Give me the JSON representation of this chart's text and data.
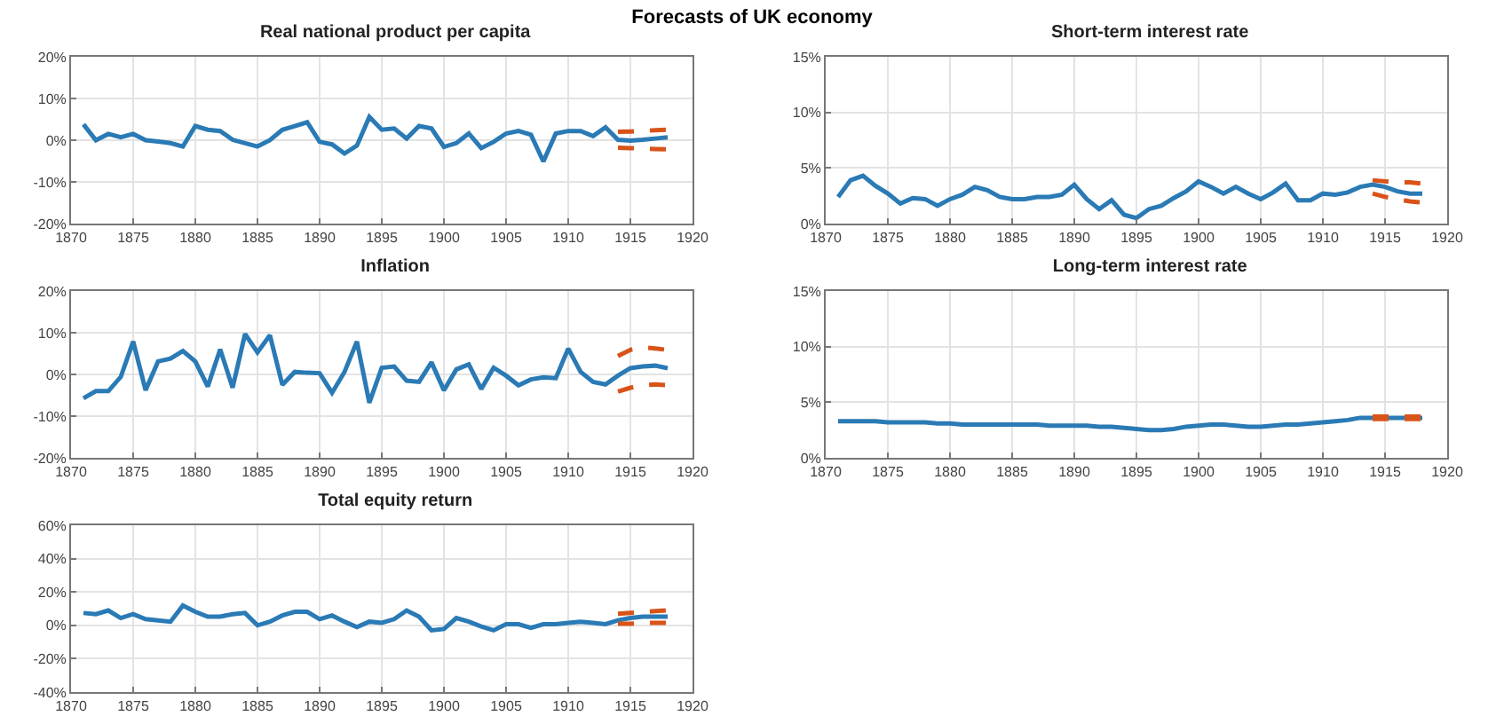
{
  "chart_data": [
    {
      "type": "line",
      "title": "Real national product per capita",
      "annotations": [
        "Forecasts of UK economy"
      ],
      "x": [
        1871,
        1872,
        1873,
        1874,
        1875,
        1876,
        1877,
        1878,
        1879,
        1880,
        1881,
        1882,
        1883,
        1884,
        1885,
        1886,
        1887,
        1888,
        1889,
        1890,
        1891,
        1892,
        1893,
        1894,
        1895,
        1896,
        1897,
        1898,
        1899,
        1900,
        1901,
        1902,
        1903,
        1904,
        1905,
        1906,
        1907,
        1908,
        1909,
        1910,
        1911,
        1912,
        1913,
        1914,
        1915,
        1916,
        1917,
        1918
      ],
      "series": [
        {
          "color": "#2a7ab5",
          "values": [
            3.8,
            0,
            1.5,
            0.7,
            1.5,
            0,
            -0.3,
            -0.7,
            -1.5,
            3.4,
            2.5,
            2.2,
            0.1,
            -0.7,
            -1.5,
            0,
            2.5,
            3.4,
            4.3,
            -0.4,
            -1,
            -3.2,
            -1.3,
            5.6,
            2.5,
            2.8,
            0.4,
            3.4,
            2.8,
            -1.6,
            -0.7,
            1.6,
            -1.9,
            -0.4,
            1.6,
            2.2,
            1.3,
            -5.1,
            1.6,
            2.2,
            2.2,
            1,
            3.1,
            0.1,
            -0.1,
            0.1,
            0.4,
            0.7
          ]
        },
        {
          "color": "#d95319",
          "line_style": "dashed",
          "x": [
            1914,
            1915,
            1916,
            1917,
            1918
          ],
          "values": [
            2,
            2.1,
            2.2,
            2.4,
            2.5
          ]
        },
        {
          "color": "#d95319",
          "line_style": "dashed",
          "x": [
            1914,
            1915,
            1916,
            1917,
            1918
          ],
          "values": [
            -1.8,
            -1.9,
            -2,
            -2.1,
            -2.2
          ]
        }
      ],
      "xlim": [
        1870,
        1920
      ],
      "xticks": [
        1870,
        1875,
        1880,
        1885,
        1890,
        1895,
        1900,
        1905,
        1910,
        1915,
        1920
      ],
      "ylim": [
        -20,
        20
      ],
      "yticks": [
        {
          "value": -20,
          "label": "-20%"
        },
        {
          "value": -10,
          "label": "-10%"
        },
        {
          "value": 0,
          "label": "0%"
        },
        {
          "value": 10,
          "label": "10%"
        },
        {
          "value": 20,
          "label": "20%"
        }
      ],
      "grid": true,
      "marker": "none"
    },
    {
      "type": "line",
      "title": "Short-term interest rate",
      "x": [
        1871,
        1872,
        1873,
        1874,
        1875,
        1876,
        1877,
        1878,
        1879,
        1880,
        1881,
        1882,
        1883,
        1884,
        1885,
        1886,
        1887,
        1888,
        1889,
        1890,
        1891,
        1892,
        1893,
        1894,
        1895,
        1896,
        1897,
        1898,
        1899,
        1900,
        1901,
        1902,
        1903,
        1904,
        1905,
        1906,
        1907,
        1908,
        1909,
        1910,
        1911,
        1912,
        1913,
        1914,
        1915,
        1916,
        1917,
        1918
      ],
      "series": [
        {
          "color": "#2a7ab5",
          "values": [
            2.4,
            3.9,
            4.3,
            3.4,
            2.7,
            1.8,
            2.3,
            2.2,
            1.6,
            2.2,
            2.6,
            3.3,
            3,
            2.4,
            2.2,
            2.2,
            2.4,
            2.4,
            2.6,
            3.5,
            2.2,
            1.3,
            2.1,
            0.8,
            0.5,
            1.3,
            1.6,
            2.3,
            2.9,
            3.8,
            3.3,
            2.7,
            3.3,
            2.7,
            2.2,
            2.8,
            3.6,
            2.1,
            2.1,
            2.7,
            2.6,
            2.8,
            3.3,
            3.5,
            3.3,
            2.9,
            2.7,
            2.7
          ]
        },
        {
          "color": "#d95319",
          "line_style": "dashed",
          "x": [
            1914,
            1915,
            1916,
            1917,
            1918
          ],
          "values": [
            3.9,
            3.8,
            3.7,
            3.7,
            3.6
          ]
        },
        {
          "color": "#d95319",
          "line_style": "dashed",
          "x": [
            1914,
            1915,
            1916,
            1917,
            1918
          ],
          "values": [
            2.7,
            2.4,
            2.2,
            2,
            1.9
          ]
        }
      ],
      "xlim": [
        1870,
        1920
      ],
      "xticks": [
        1870,
        1875,
        1880,
        1885,
        1890,
        1895,
        1900,
        1905,
        1910,
        1915,
        1920
      ],
      "ylim": [
        0,
        15
      ],
      "yticks": [
        {
          "value": 0,
          "label": "0%"
        },
        {
          "value": 5,
          "label": "5%"
        },
        {
          "value": 10,
          "label": "10%"
        },
        {
          "value": 15,
          "label": "15%"
        }
      ],
      "grid": true,
      "marker": "none"
    },
    {
      "type": "line",
      "title": "Inflation",
      "x": [
        1871,
        1872,
        1873,
        1874,
        1875,
        1876,
        1877,
        1878,
        1879,
        1880,
        1881,
        1882,
        1883,
        1884,
        1885,
        1886,
        1887,
        1888,
        1889,
        1890,
        1891,
        1892,
        1893,
        1894,
        1895,
        1896,
        1897,
        1898,
        1899,
        1900,
        1901,
        1902,
        1903,
        1904,
        1905,
        1906,
        1907,
        1908,
        1909,
        1910,
        1911,
        1912,
        1913,
        1914,
        1915,
        1916,
        1917,
        1918
      ],
      "series": [
        {
          "color": "#2a7ab5",
          "values": [
            -5.7,
            -4,
            -4,
            -0.6,
            7.9,
            -3.8,
            3.1,
            3.8,
            5.6,
            3.1,
            -2.9,
            6,
            -3.2,
            9.7,
            5.3,
            9.4,
            -2.5,
            0.6,
            0.4,
            0.3,
            -4.4,
            0.6,
            7.9,
            -6.8,
            1.6,
            1.9,
            -1.5,
            -1.8,
            2.9,
            -3.8,
            1.2,
            2.4,
            -3.5,
            1.6,
            -0.3,
            -2.6,
            -1.2,
            -0.7,
            -0.9,
            6.2,
            0.6,
            -1.8,
            -2.4,
            -0.3,
            1.5,
            1.9,
            2.1,
            1.5
          ]
        },
        {
          "color": "#d95319",
          "line_style": "dashed",
          "x": [
            1914,
            1915,
            1916,
            1917,
            1918
          ],
          "values": [
            4.4,
            5.9,
            6.5,
            6.2,
            5.9
          ]
        },
        {
          "color": "#d95319",
          "line_style": "dashed",
          "x": [
            1914,
            1915,
            1916,
            1917,
            1918
          ],
          "values": [
            -4.1,
            -3.2,
            -2.6,
            -2.4,
            -2.6
          ]
        }
      ],
      "xlim": [
        1870,
        1920
      ],
      "xticks": [
        1870,
        1875,
        1880,
        1885,
        1890,
        1895,
        1900,
        1905,
        1910,
        1915,
        1920
      ],
      "ylim": [
        -20,
        20
      ],
      "yticks": [
        {
          "value": -20,
          "label": "-20%"
        },
        {
          "value": -10,
          "label": "-10%"
        },
        {
          "value": 0,
          "label": "0%"
        },
        {
          "value": 10,
          "label": "10%"
        },
        {
          "value": 20,
          "label": "20%"
        }
      ],
      "grid": true,
      "marker": "none"
    },
    {
      "type": "line",
      "title": "Long-term interest rate",
      "x": [
        1871,
        1872,
        1873,
        1874,
        1875,
        1876,
        1877,
        1878,
        1879,
        1880,
        1881,
        1882,
        1883,
        1884,
        1885,
        1886,
        1887,
        1888,
        1889,
        1890,
        1891,
        1892,
        1893,
        1894,
        1895,
        1896,
        1897,
        1898,
        1899,
        1900,
        1901,
        1902,
        1903,
        1904,
        1905,
        1906,
        1907,
        1908,
        1909,
        1910,
        1911,
        1912,
        1913,
        1914,
        1915,
        1916,
        1917,
        1918
      ],
      "series": [
        {
          "color": "#2a7ab5",
          "values": [
            3.3,
            3.3,
            3.3,
            3.3,
            3.2,
            3.2,
            3.2,
            3.2,
            3.1,
            3.1,
            3,
            3,
            3,
            3,
            3,
            3,
            3,
            2.9,
            2.9,
            2.9,
            2.9,
            2.8,
            2.8,
            2.7,
            2.6,
            2.5,
            2.5,
            2.6,
            2.8,
            2.9,
            3,
            3,
            2.9,
            2.8,
            2.8,
            2.9,
            3,
            3,
            3.1,
            3.2,
            3.3,
            3.4,
            3.6,
            3.6,
            3.6,
            3.6,
            3.6,
            3.6
          ]
        },
        {
          "color": "#d95319",
          "line_style": "dashed",
          "x": [
            1914,
            1915,
            1916,
            1917,
            1918
          ],
          "values": [
            3.7,
            3.7,
            3.7,
            3.7,
            3.7
          ]
        },
        {
          "color": "#d95319",
          "line_style": "dashed",
          "x": [
            1914,
            1915,
            1916,
            1917,
            1918
          ],
          "values": [
            3.5,
            3.5,
            3.5,
            3.5,
            3.5
          ]
        }
      ],
      "xlim": [
        1870,
        1920
      ],
      "xticks": [
        1870,
        1875,
        1880,
        1885,
        1890,
        1895,
        1900,
        1905,
        1910,
        1915,
        1920
      ],
      "ylim": [
        0,
        15
      ],
      "yticks": [
        {
          "value": 0,
          "label": "0%"
        },
        {
          "value": 5,
          "label": "5%"
        },
        {
          "value": 10,
          "label": "10%"
        },
        {
          "value": 15,
          "label": "15%"
        }
      ],
      "grid": true,
      "marker": "none"
    },
    {
      "type": "line",
      "title": "Total equity return",
      "x": [
        1871,
        1872,
        1873,
        1874,
        1875,
        1876,
        1877,
        1878,
        1879,
        1880,
        1881,
        1882,
        1883,
        1884,
        1885,
        1886,
        1887,
        1888,
        1889,
        1890,
        1891,
        1892,
        1893,
        1894,
        1895,
        1896,
        1897,
        1898,
        1899,
        1900,
        1901,
        1902,
        1903,
        1904,
        1905,
        1906,
        1907,
        1908,
        1909,
        1910,
        1911,
        1912,
        1913,
        1914,
        1915,
        1916,
        1917,
        1918
      ],
      "series": [
        {
          "color": "#2a7ab5",
          "values": [
            7.4,
            6.7,
            8.9,
            4.4,
            6.7,
            3.7,
            3,
            2.2,
            11.9,
            8.1,
            5.2,
            5.2,
            6.7,
            7.4,
            0,
            2.2,
            5.9,
            8.1,
            8.1,
            3.7,
            5.9,
            2.2,
            -1.1,
            2.2,
            1.5,
            3.7,
            8.9,
            5.2,
            -3,
            -2.2,
            4.4,
            2.2,
            -0.7,
            -3,
            0.7,
            0.7,
            -1.5,
            0.7,
            0.7,
            1.5,
            2.2,
            1.5,
            0.7,
            3,
            4.4,
            5.2,
            5.2,
            5.2
          ]
        },
        {
          "color": "#d95319",
          "line_style": "dashed",
          "x": [
            1914,
            1915,
            1916,
            1917,
            1918
          ],
          "values": [
            7,
            7.5,
            8,
            8.5,
            9
          ]
        },
        {
          "color": "#d95319",
          "line_style": "dashed",
          "x": [
            1914,
            1915,
            1916,
            1917,
            1918
          ],
          "values": [
            1,
            1,
            1.5,
            1.5,
            1.5
          ]
        }
      ],
      "xlim": [
        1870,
        1920
      ],
      "xticks": [
        1870,
        1875,
        1880,
        1885,
        1890,
        1895,
        1900,
        1905,
        1910,
        1915,
        1920
      ],
      "ylim": [
        -40,
        60
      ],
      "yticks": [
        {
          "value": -40,
          "label": "-40%"
        },
        {
          "value": -20,
          "label": "-20%"
        },
        {
          "value": 0,
          "label": "0%"
        },
        {
          "value": 20,
          "label": "20%"
        },
        {
          "value": 40,
          "label": "40%"
        },
        {
          "value": 60,
          "label": "60%"
        }
      ],
      "grid": true,
      "marker": "none"
    }
  ]
}
